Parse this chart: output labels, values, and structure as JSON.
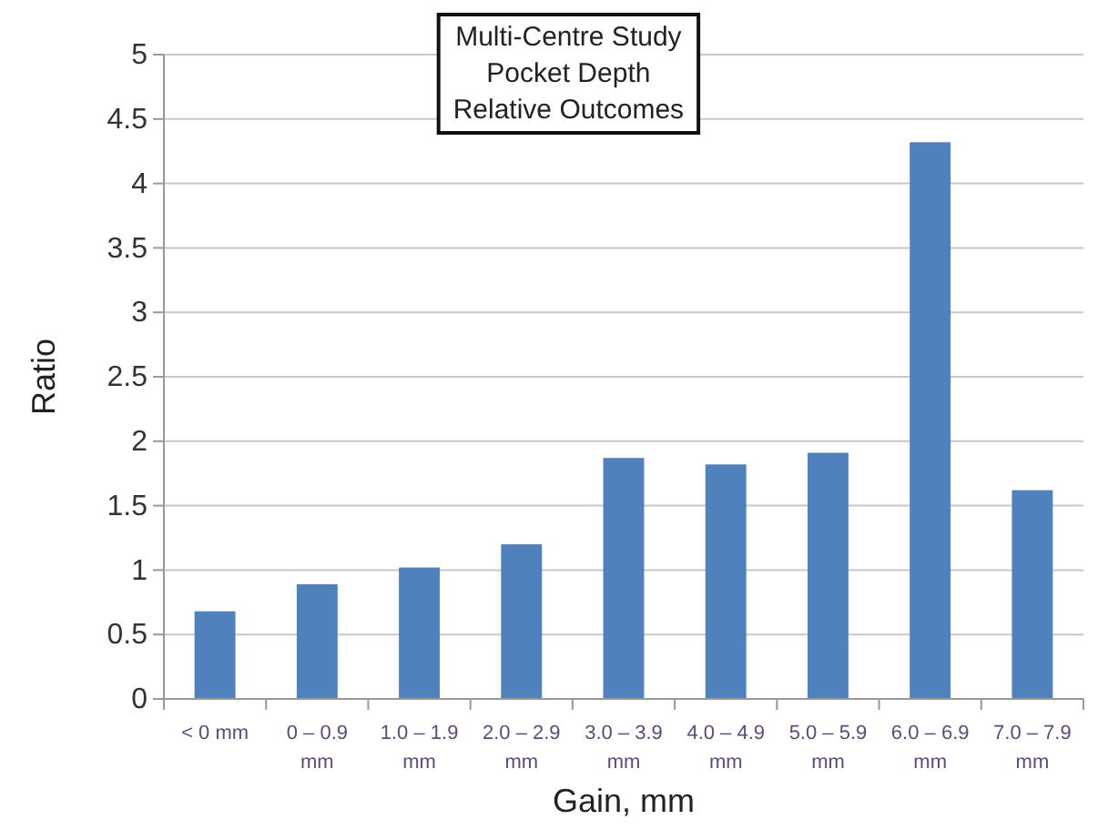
{
  "chart_data": {
    "type": "bar",
    "title": "Multi-Centre Study\nPocket Depth\nRelative Outcomes",
    "xlabel": "Gain, mm",
    "ylabel": "Ratio",
    "categories": [
      "< 0 mm",
      "0 – 0.9 mm",
      "1.0 – 1.9 mm",
      "2.0 – 2.9 mm",
      "3.0 – 3.9 mm",
      "4.0 – 4.9 mm",
      "5.0 – 5.9 mm",
      "6.0 – 6.9 mm",
      "7.0 – 7.9 mm"
    ],
    "values": [
      0.68,
      0.89,
      1.02,
      1.2,
      1.87,
      1.82,
      1.91,
      4.32,
      1.62
    ],
    "color": "#4f81bd",
    "ylim": [
      0,
      5
    ],
    "yticks": [
      0,
      0.5,
      1,
      1.5,
      2,
      2.5,
      3,
      3.5,
      4,
      4.5,
      5
    ],
    "grid": "y"
  }
}
